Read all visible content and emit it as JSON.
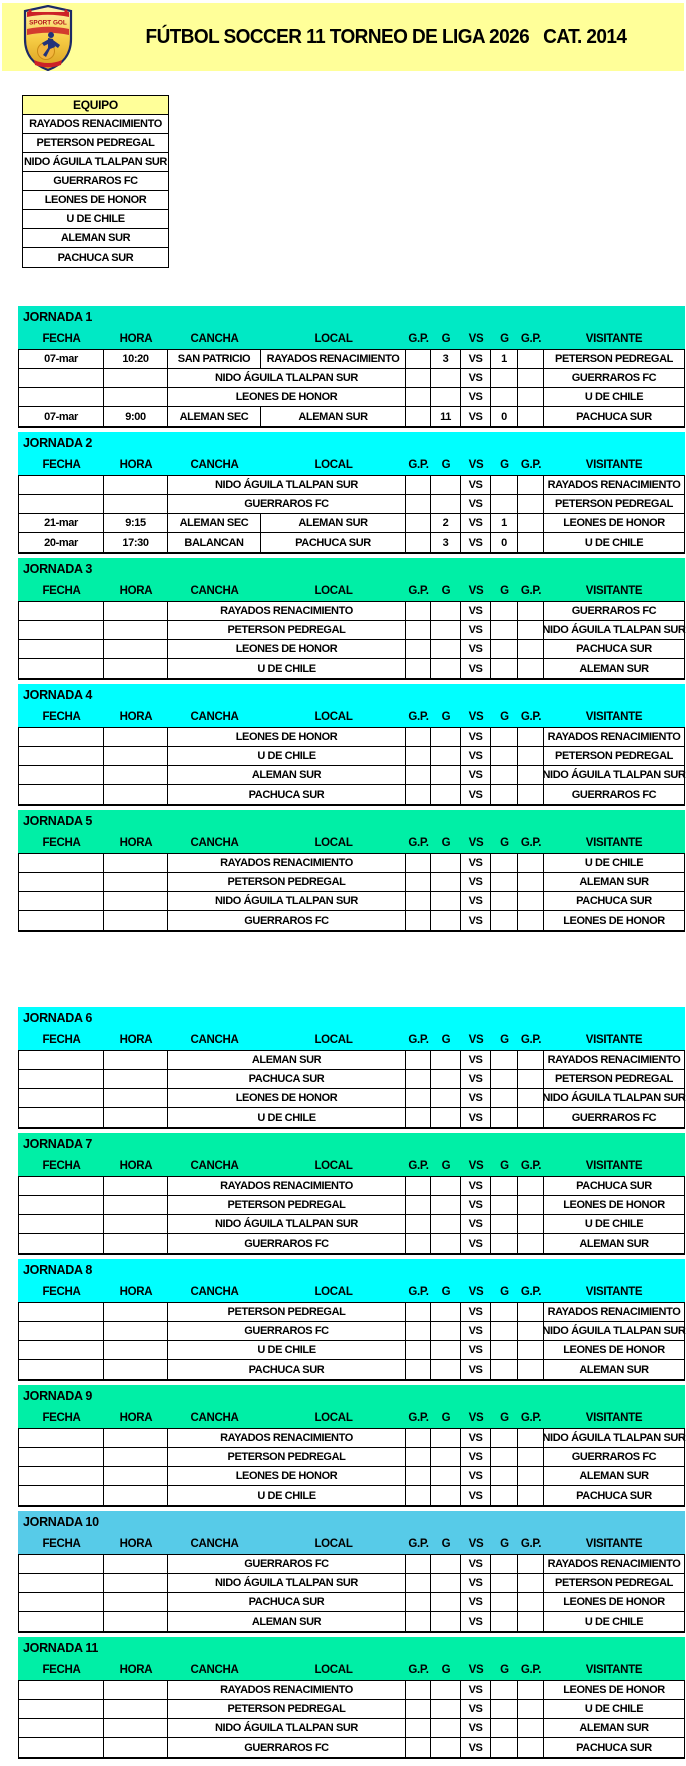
{
  "banner": {
    "title": "FÚTBOL SOCCER 11 TORNEO DE LIGA 2026   CAT. 2014",
    "bg_color": "#FFFF99",
    "logo_text": "SPORT GOL"
  },
  "equipo": {
    "header": "EQUIPO",
    "teams": [
      "RAYADOS RENACIMIENTO",
      "PETERSON PEDREGAL",
      "NIDO ÁGUILA TLALPAN SUR",
      "GUERRAROS FC",
      "LEONES DE HONOR",
      "U DE CHILE",
      "ALEMAN SUR",
      "PACHUCA SUR"
    ]
  },
  "table_headers": {
    "fecha": "FECHA",
    "hora": "HORA",
    "cancha": "CANCHA",
    "local": "LOCAL",
    "gp1": "G.P.",
    "g1": "G",
    "vs": "VS",
    "g2": "G",
    "gp2": "G.P.",
    "visitante": "VISITANTE"
  },
  "vs_label": "VS",
  "colors": {
    "turquoise": "#00E9C5",
    "cyan": "#00FFFF",
    "spring": "#00EFA6",
    "sky": "#57CBE8",
    "yellow": "#FFFF99"
  },
  "jornadas": [
    {
      "title": "JORNADA 1",
      "color": "turquoise",
      "rows": [
        {
          "fecha": "07-mar",
          "hora": "10:20",
          "cancha": "SAN PATRICIO",
          "local": "RAYADOS RENACIMIENTO",
          "gp1": "",
          "g1": "3",
          "g2": "1",
          "gp2": "",
          "visitante": "PETERSON PEDREGAL"
        },
        {
          "fecha": "",
          "hora": "",
          "cancha": "",
          "local": "NIDO ÁGUILA TLALPAN SUR",
          "gp1": "",
          "g1": "",
          "g2": "",
          "gp2": "",
          "visitante": "GUERRAROS FC"
        },
        {
          "fecha": "",
          "hora": "",
          "cancha": "",
          "local": "LEONES DE HONOR",
          "gp1": "",
          "g1": "",
          "g2": "",
          "gp2": "",
          "visitante": "U DE CHILE"
        },
        {
          "fecha": "07-mar",
          "hora": "9:00",
          "cancha": "ALEMAN SEC",
          "local": "ALEMAN SUR",
          "gp1": "",
          "g1": "11",
          "g2": "0",
          "gp2": "",
          "visitante": "PACHUCA SUR"
        }
      ]
    },
    {
      "title": "JORNADA 2",
      "color": "cyan",
      "rows": [
        {
          "fecha": "",
          "hora": "",
          "cancha": "",
          "local": "NIDO ÁGUILA TLALPAN SUR",
          "gp1": "",
          "g1": "",
          "g2": "",
          "gp2": "",
          "visitante": "RAYADOS RENACIMIENTO"
        },
        {
          "fecha": "",
          "hora": "",
          "cancha": "",
          "local": "GUERRAROS FC",
          "gp1": "",
          "g1": "",
          "g2": "",
          "gp2": "",
          "visitante": "PETERSON PEDREGAL"
        },
        {
          "fecha": "21-mar",
          "hora": "9:15",
          "cancha": "ALEMAN SEC",
          "local": "ALEMAN SUR",
          "gp1": "",
          "g1": "2",
          "g2": "1",
          "gp2": "",
          "visitante": "LEONES DE HONOR"
        },
        {
          "fecha": "20-mar",
          "hora": "17:30",
          "cancha": "BALANCAN",
          "local": "PACHUCA SUR",
          "gp1": "",
          "g1": "3",
          "g2": "0",
          "gp2": "",
          "visitante": "U DE CHILE"
        }
      ]
    },
    {
      "title": "JORNADA 3",
      "color": "spring",
      "rows": [
        {
          "fecha": "",
          "hora": "",
          "cancha": "",
          "local": "RAYADOS RENACIMIENTO",
          "gp1": "",
          "g1": "",
          "g2": "",
          "gp2": "",
          "visitante": "GUERRAROS FC"
        },
        {
          "fecha": "",
          "hora": "",
          "cancha": "",
          "local": "PETERSON PEDREGAL",
          "gp1": "",
          "g1": "",
          "g2": "",
          "gp2": "",
          "visitante": "NIDO ÁGUILA TLALPAN SUR"
        },
        {
          "fecha": "",
          "hora": "",
          "cancha": "",
          "local": "LEONES DE HONOR",
          "gp1": "",
          "g1": "",
          "g2": "",
          "gp2": "",
          "visitante": "PACHUCA SUR"
        },
        {
          "fecha": "",
          "hora": "",
          "cancha": "",
          "local": "U DE CHILE",
          "gp1": "",
          "g1": "",
          "g2": "",
          "gp2": "",
          "visitante": "ALEMAN SUR"
        }
      ]
    },
    {
      "title": "JORNADA 4",
      "color": "cyan",
      "rows": [
        {
          "fecha": "",
          "hora": "",
          "cancha": "",
          "local": "LEONES DE HONOR",
          "gp1": "",
          "g1": "",
          "g2": "",
          "gp2": "",
          "visitante": "RAYADOS RENACIMIENTO"
        },
        {
          "fecha": "",
          "hora": "",
          "cancha": "",
          "local": "U DE CHILE",
          "gp1": "",
          "g1": "",
          "g2": "",
          "gp2": "",
          "visitante": "PETERSON PEDREGAL"
        },
        {
          "fecha": "",
          "hora": "",
          "cancha": "",
          "local": "ALEMAN SUR",
          "gp1": "",
          "g1": "",
          "g2": "",
          "gp2": "",
          "visitante": "NIDO ÁGUILA TLALPAN SUR"
        },
        {
          "fecha": "",
          "hora": "",
          "cancha": "",
          "local": "PACHUCA SUR",
          "gp1": "",
          "g1": "",
          "g2": "",
          "gp2": "",
          "visitante": "GUERRAROS FC"
        }
      ]
    },
    {
      "title": "JORNADA 5",
      "color": "spring",
      "rows": [
        {
          "fecha": "",
          "hora": "",
          "cancha": "",
          "local": "RAYADOS RENACIMIENTO",
          "gp1": "",
          "g1": "",
          "g2": "",
          "gp2": "",
          "visitante": "U DE CHILE"
        },
        {
          "fecha": "",
          "hora": "",
          "cancha": "",
          "local": "PETERSON PEDREGAL",
          "gp1": "",
          "g1": "",
          "g2": "",
          "gp2": "",
          "visitante": "ALEMAN SUR"
        },
        {
          "fecha": "",
          "hora": "",
          "cancha": "",
          "local": "NIDO ÁGUILA TLALPAN SUR",
          "gp1": "",
          "g1": "",
          "g2": "",
          "gp2": "",
          "visitante": "PACHUCA SUR"
        },
        {
          "fecha": "",
          "hora": "",
          "cancha": "",
          "local": "GUERRAROS FC",
          "gp1": "",
          "g1": "",
          "g2": "",
          "gp2": "",
          "visitante": "LEONES DE HONOR"
        }
      ]
    },
    {
      "title": "JORNADA 6",
      "color": "cyan",
      "rows": [
        {
          "fecha": "",
          "hora": "",
          "cancha": "",
          "local": "ALEMAN SUR",
          "gp1": "",
          "g1": "",
          "g2": "",
          "gp2": "",
          "visitante": "RAYADOS RENACIMIENTO"
        },
        {
          "fecha": "",
          "hora": "",
          "cancha": "",
          "local": "PACHUCA SUR",
          "gp1": "",
          "g1": "",
          "g2": "",
          "gp2": "",
          "visitante": "PETERSON PEDREGAL"
        },
        {
          "fecha": "",
          "hora": "",
          "cancha": "",
          "local": "LEONES DE HONOR",
          "gp1": "",
          "g1": "",
          "g2": "",
          "gp2": "",
          "visitante": "NIDO ÁGUILA TLALPAN SUR"
        },
        {
          "fecha": "",
          "hora": "",
          "cancha": "",
          "local": "U DE CHILE",
          "gp1": "",
          "g1": "",
          "g2": "",
          "gp2": "",
          "visitante": "GUERRAROS FC"
        }
      ]
    },
    {
      "title": "JORNADA 7",
      "color": "spring",
      "rows": [
        {
          "fecha": "",
          "hora": "",
          "cancha": "",
          "local": "RAYADOS RENACIMIENTO",
          "gp1": "",
          "g1": "",
          "g2": "",
          "gp2": "",
          "visitante": "PACHUCA SUR"
        },
        {
          "fecha": "",
          "hora": "",
          "cancha": "",
          "local": "PETERSON PEDREGAL",
          "gp1": "",
          "g1": "",
          "g2": "",
          "gp2": "",
          "visitante": "LEONES DE HONOR"
        },
        {
          "fecha": "",
          "hora": "",
          "cancha": "",
          "local": "NIDO ÁGUILA TLALPAN SUR",
          "gp1": "",
          "g1": "",
          "g2": "",
          "gp2": "",
          "visitante": "U DE CHILE"
        },
        {
          "fecha": "",
          "hora": "",
          "cancha": "",
          "local": "GUERRAROS FC",
          "gp1": "",
          "g1": "",
          "g2": "",
          "gp2": "",
          "visitante": "ALEMAN SUR"
        }
      ]
    },
    {
      "title": "JORNADA 8",
      "color": "cyan",
      "rows": [
        {
          "fecha": "",
          "hora": "",
          "cancha": "",
          "local": "PETERSON PEDREGAL",
          "gp1": "",
          "g1": "",
          "g2": "",
          "gp2": "",
          "visitante": "RAYADOS RENACIMIENTO"
        },
        {
          "fecha": "",
          "hora": "",
          "cancha": "",
          "local": "GUERRAROS FC",
          "gp1": "",
          "g1": "",
          "g2": "",
          "gp2": "",
          "visitante": "NIDO ÁGUILA TLALPAN SUR"
        },
        {
          "fecha": "",
          "hora": "",
          "cancha": "",
          "local": "U DE CHILE",
          "gp1": "",
          "g1": "",
          "g2": "",
          "gp2": "",
          "visitante": "LEONES DE HONOR"
        },
        {
          "fecha": "",
          "hora": "",
          "cancha": "",
          "local": "PACHUCA SUR",
          "gp1": "",
          "g1": "",
          "g2": "",
          "gp2": "",
          "visitante": "ALEMAN SUR"
        }
      ]
    },
    {
      "title": "JORNADA 9",
      "color": "spring",
      "rows": [
        {
          "fecha": "",
          "hora": "",
          "cancha": "",
          "local": "RAYADOS RENACIMIENTO",
          "gp1": "",
          "g1": "",
          "g2": "",
          "gp2": "",
          "visitante": "NIDO ÁGUILA TLALPAN SUR"
        },
        {
          "fecha": "",
          "hora": "",
          "cancha": "",
          "local": "PETERSON PEDREGAL",
          "gp1": "",
          "g1": "",
          "g2": "",
          "gp2": "",
          "visitante": "GUERRAROS FC"
        },
        {
          "fecha": "",
          "hora": "",
          "cancha": "",
          "local": "LEONES DE HONOR",
          "gp1": "",
          "g1": "",
          "g2": "",
          "gp2": "",
          "visitante": "ALEMAN SUR"
        },
        {
          "fecha": "",
          "hora": "",
          "cancha": "",
          "local": "U DE CHILE",
          "gp1": "",
          "g1": "",
          "g2": "",
          "gp2": "",
          "visitante": "PACHUCA SUR"
        }
      ]
    },
    {
      "title": "JORNADA 10",
      "color": "sky",
      "rows": [
        {
          "fecha": "",
          "hora": "",
          "cancha": "",
          "local": "GUERRAROS FC",
          "gp1": "",
          "g1": "",
          "g2": "",
          "gp2": "",
          "visitante": "RAYADOS RENACIMIENTO"
        },
        {
          "fecha": "",
          "hora": "",
          "cancha": "",
          "local": "NIDO ÁGUILA TLALPAN SUR",
          "gp1": "",
          "g1": "",
          "g2": "",
          "gp2": "",
          "visitante": "PETERSON PEDREGAL"
        },
        {
          "fecha": "",
          "hora": "",
          "cancha": "",
          "local": "PACHUCA SUR",
          "gp1": "",
          "g1": "",
          "g2": "",
          "gp2": "",
          "visitante": "LEONES DE HONOR"
        },
        {
          "fecha": "",
          "hora": "",
          "cancha": "",
          "local": "ALEMAN SUR",
          "gp1": "",
          "g1": "",
          "g2": "",
          "gp2": "",
          "visitante": "U DE CHILE"
        }
      ]
    },
    {
      "title": "JORNADA 11",
      "color": "spring",
      "rows": [
        {
          "fecha": "",
          "hora": "",
          "cancha": "",
          "local": "RAYADOS RENACIMIENTO",
          "gp1": "",
          "g1": "",
          "g2": "",
          "gp2": "",
          "visitante": "LEONES DE HONOR"
        },
        {
          "fecha": "",
          "hora": "",
          "cancha": "",
          "local": "PETERSON PEDREGAL",
          "gp1": "",
          "g1": "",
          "g2": "",
          "gp2": "",
          "visitante": "U DE CHILE"
        },
        {
          "fecha": "",
          "hora": "",
          "cancha": "",
          "local": "NIDO ÁGUILA TLALPAN SUR",
          "gp1": "",
          "g1": "",
          "g2": "",
          "gp2": "",
          "visitante": "ALEMAN SUR"
        },
        {
          "fecha": "",
          "hora": "",
          "cancha": "",
          "local": "GUERRAROS FC",
          "gp1": "",
          "g1": "",
          "g2": "",
          "gp2": "",
          "visitante": "PACHUCA SUR"
        }
      ]
    }
  ]
}
